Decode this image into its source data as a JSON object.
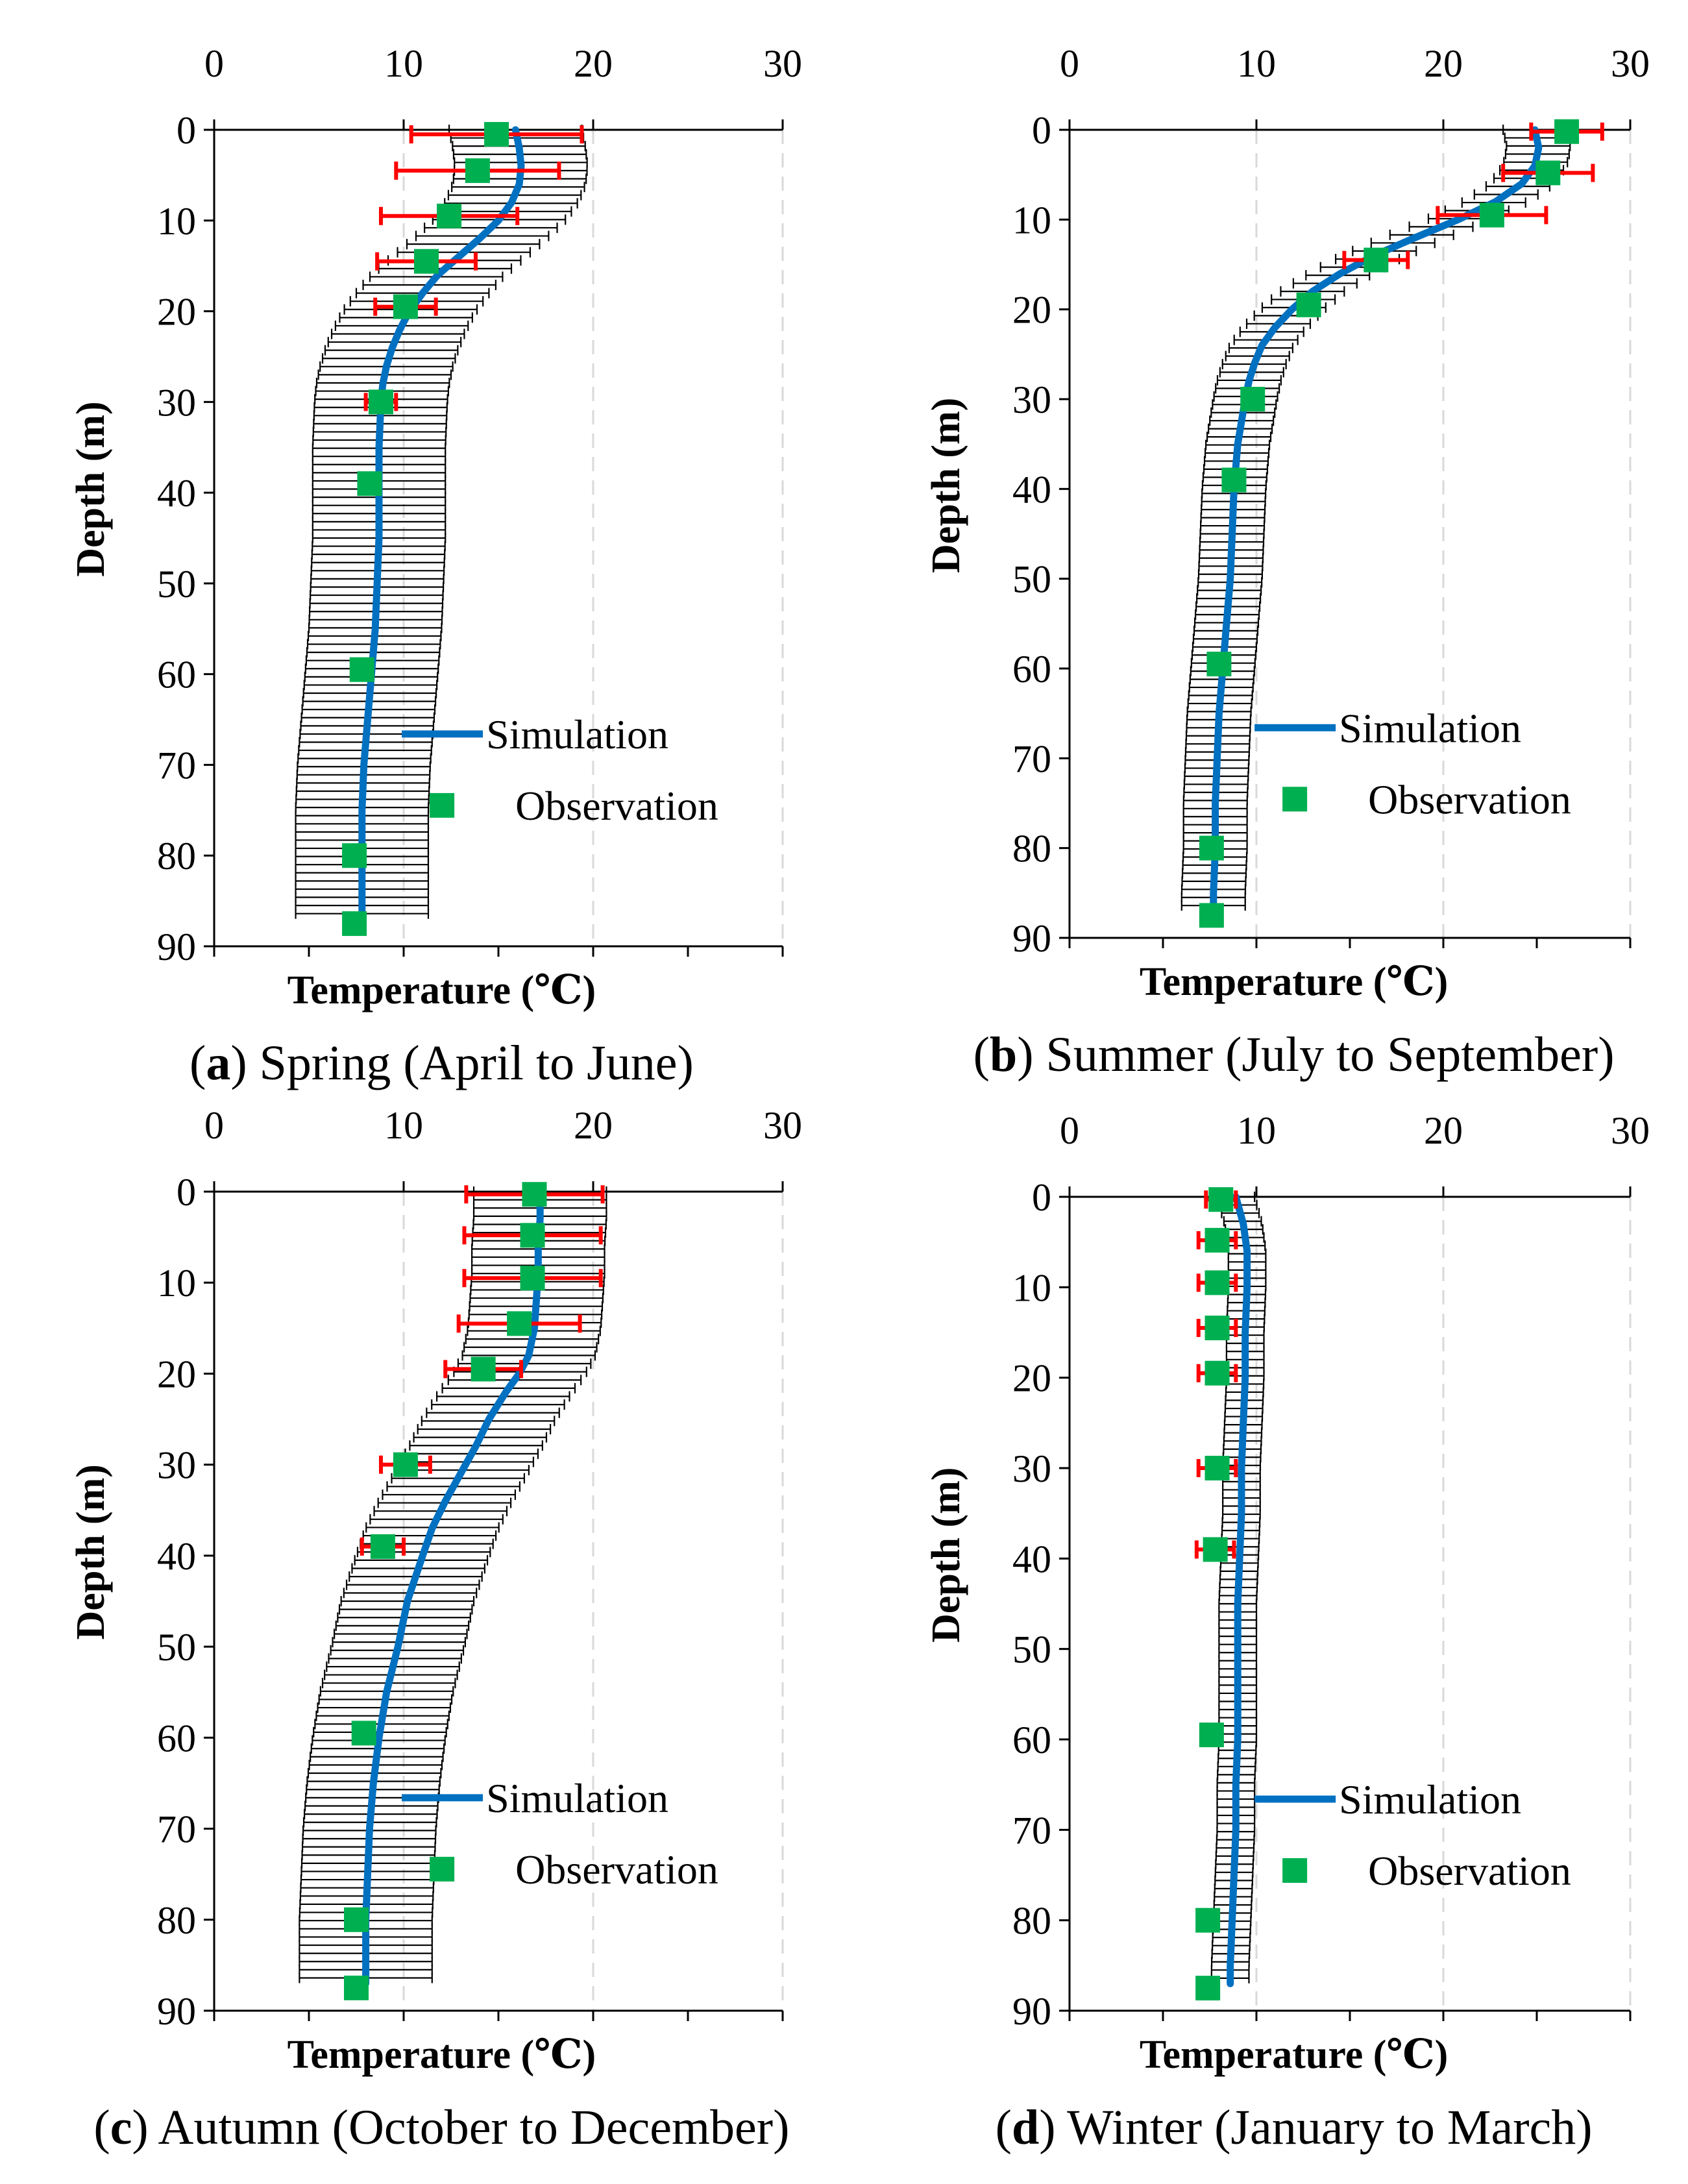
{
  "figure": {
    "colors": {
      "simulation": "#0070C0",
      "observation": "#00B050",
      "obs_error": "#FF0000",
      "sim_error": "#000000",
      "grid": "#D9D9D9"
    }
  },
  "chart_data": [
    {
      "type": "line",
      "panel_letter": "a",
      "caption": "Spring (April to June)",
      "xlabel": "Temperature (℃)",
      "ylabel": "Depth (m)",
      "xlim": [
        0,
        30
      ],
      "ylim": [
        0,
        90
      ],
      "x_ticks": [
        "0",
        "10",
        "20",
        "30"
      ],
      "y_ticks": [
        "0",
        "10",
        "20",
        "30",
        "40",
        "50",
        "60",
        "70",
        "80",
        "90"
      ],
      "legend": [
        "Simulation",
        "Observation"
      ],
      "sim_error": 3.5,
      "simulation": {
        "depth": [
          0,
          2,
          4,
          6,
          8,
          10,
          12,
          14,
          16,
          18,
          20,
          22,
          24,
          26,
          28,
          30,
          35,
          40,
          45,
          50,
          55,
          60,
          65,
          70,
          75,
          80,
          85,
          87
        ],
        "temp": [
          15.9,
          16.1,
          16.2,
          16.1,
          15.7,
          15.0,
          14.0,
          12.9,
          11.8,
          11.0,
          10.3,
          9.8,
          9.4,
          9.1,
          8.9,
          8.8,
          8.7,
          8.7,
          8.7,
          8.6,
          8.5,
          8.3,
          8.1,
          7.9,
          7.8,
          7.8,
          7.8,
          7.8
        ]
      },
      "observation": {
        "depth": [
          0.5,
          4.5,
          9.5,
          14.5,
          19.5,
          30,
          39,
          59.5,
          80,
          87.5
        ],
        "temp": [
          14.9,
          13.9,
          12.4,
          11.2,
          10.1,
          8.8,
          8.2,
          7.8,
          7.4,
          7.4
        ],
        "error": [
          4.5,
          4.3,
          3.6,
          2.6,
          1.6,
          0.8,
          0,
          0,
          0,
          0
        ]
      }
    },
    {
      "type": "line",
      "panel_letter": "b",
      "caption": "Summer (July to September)",
      "xlabel": "Temperature (℃)",
      "ylabel": "Depth (m)",
      "xlim": [
        0,
        30
      ],
      "ylim": [
        0,
        90
      ],
      "x_ticks": [
        "0",
        "10",
        "20",
        "30"
      ],
      "y_ticks": [
        "0",
        "10",
        "20",
        "30",
        "40",
        "50",
        "60",
        "70",
        "80",
        "90"
      ],
      "legend": [
        "Simulation",
        "Observation"
      ],
      "sim_error": 1.7,
      "simulation": {
        "depth": [
          0,
          2,
          4,
          6,
          8,
          10,
          12,
          14,
          16,
          18,
          20,
          22,
          24,
          26,
          28,
          30,
          35,
          40,
          45,
          50,
          55,
          60,
          65,
          70,
          75,
          80,
          85,
          87
        ],
        "temp": [
          24.9,
          25.1,
          24.9,
          24.2,
          22.8,
          20.8,
          18.5,
          16.3,
          14.5,
          13.0,
          11.9,
          11.0,
          10.3,
          9.9,
          9.6,
          9.4,
          9.0,
          8.8,
          8.7,
          8.6,
          8.4,
          8.2,
          8.0,
          7.9,
          7.8,
          7.8,
          7.7,
          7.7
        ]
      },
      "observation": {
        "depth": [
          0.2,
          4.8,
          9.5,
          14.5,
          19.5,
          30,
          39,
          59.5,
          80,
          87.5
        ],
        "temp": [
          26.6,
          25.6,
          22.6,
          16.4,
          12.8,
          9.8,
          8.8,
          8.0,
          7.6,
          7.6
        ],
        "error": [
          1.9,
          2.4,
          2.9,
          1.7,
          0,
          0,
          0,
          0,
          0,
          0
        ]
      }
    },
    {
      "type": "line",
      "panel_letter": "c",
      "caption": "Autumn (October to December)",
      "xlabel": "Temperature (℃)",
      "ylabel": "Depth (m)",
      "xlim": [
        0,
        30
      ],
      "ylim": [
        0,
        90
      ],
      "x_ticks": [
        "0",
        "10",
        "20",
        "30"
      ],
      "y_ticks": [
        "0",
        "10",
        "20",
        "30",
        "40",
        "50",
        "60",
        "70",
        "80",
        "90"
      ],
      "legend": [
        "Simulation",
        "Observation"
      ],
      "sim_error": 3.5,
      "simulation": {
        "depth": [
          0,
          3,
          6,
          9,
          12,
          15,
          18,
          20,
          22,
          25,
          28,
          31,
          34,
          37,
          40,
          45,
          50,
          55,
          60,
          65,
          70,
          75,
          80,
          85,
          87
        ],
        "temp": [
          17.2,
          17.2,
          17.1,
          17.1,
          17.0,
          16.9,
          16.6,
          16.1,
          15.4,
          14.5,
          13.8,
          13.0,
          12.2,
          11.5,
          11.0,
          10.2,
          9.7,
          9.1,
          8.7,
          8.4,
          8.2,
          8.1,
          8.0,
          8.0,
          8.0
        ]
      },
      "observation": {
        "depth": [
          0.3,
          4.8,
          9.5,
          14.5,
          19.5,
          30,
          39,
          59.5,
          80,
          87.5
        ],
        "temp": [
          16.9,
          16.8,
          16.8,
          16.1,
          14.2,
          10.1,
          8.9,
          7.9,
          7.5,
          7.5
        ],
        "error": [
          3.6,
          3.6,
          3.6,
          3.2,
          2.0,
          1.3,
          1.1,
          0,
          0,
          0
        ]
      }
    },
    {
      "type": "line",
      "panel_letter": "d",
      "caption": "Winter (January to March)",
      "xlabel": "Temperature (℃)",
      "ylabel": "Depth (m)",
      "xlim": [
        0,
        30
      ],
      "ylim": [
        0,
        90
      ],
      "x_ticks": [
        "0",
        "10",
        "20",
        "30"
      ],
      "y_ticks": [
        "0",
        "10",
        "20",
        "30",
        "40",
        "50",
        "60",
        "70",
        "80",
        "90"
      ],
      "legend": [
        "Simulation",
        "Observation"
      ],
      "sim_error": 1.0,
      "simulation": {
        "depth": [
          0,
          3,
          6,
          10,
          15,
          20,
          25,
          30,
          35,
          40,
          45,
          50,
          55,
          60,
          65,
          70,
          75,
          80,
          85,
          87
        ],
        "temp": [
          8.9,
          9.3,
          9.5,
          9.5,
          9.4,
          9.4,
          9.3,
          9.2,
          9.2,
          9.1,
          9.0,
          9.0,
          9.0,
          9.0,
          8.9,
          8.9,
          8.8,
          8.7,
          8.6,
          8.6
        ]
      },
      "observation": {
        "depth": [
          0.3,
          4.8,
          9.5,
          14.5,
          19.5,
          30,
          39,
          59.5,
          80,
          87.5
        ],
        "temp": [
          8.1,
          7.9,
          7.9,
          7.9,
          7.9,
          7.9,
          7.8,
          7.6,
          7.4,
          7.4
        ],
        "error": [
          0.8,
          1.0,
          1.0,
          1.0,
          1.0,
          1.0,
          1.0,
          0,
          0,
          0
        ]
      }
    }
  ]
}
